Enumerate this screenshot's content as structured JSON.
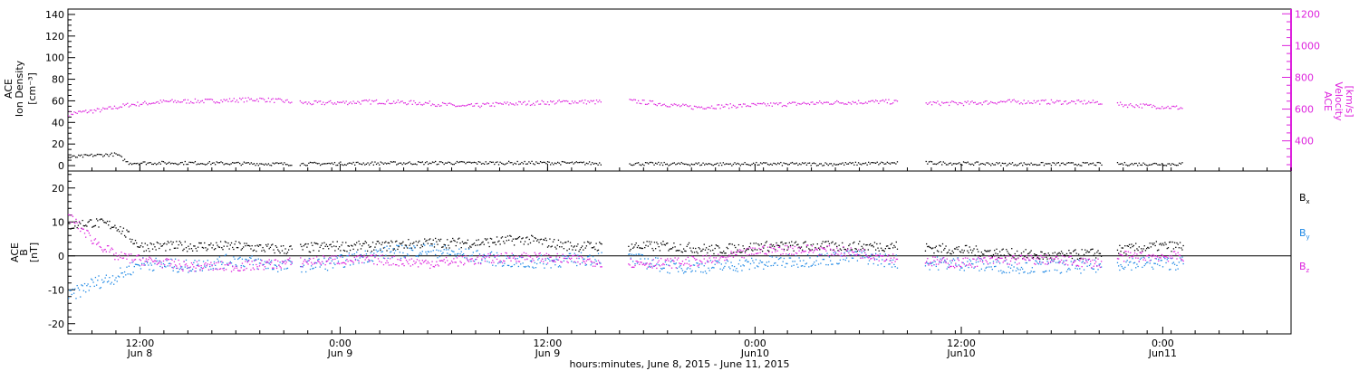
{
  "time_axis": {
    "caption": "hours:minutes, June  8, 2015 - June 11, 2015",
    "range_hours": [
      0,
      102
    ],
    "gap_hours": [
      [
        18.7,
        19.3
      ],
      [
        44.5,
        46.7
      ],
      [
        69.2,
        71.4
      ],
      [
        86.2,
        87.4
      ],
      [
        97.5,
        102
      ]
    ],
    "ticks": [
      {
        "hour": 6,
        "time": "12:00",
        "date": "Jun 8"
      },
      {
        "hour": 22.7,
        "time": "0:00",
        "date": "Jun 9"
      },
      {
        "hour": 40,
        "time": "12:00",
        "date": "Jun 9"
      },
      {
        "hour": 57.3,
        "time": "0:00",
        "date": "Jun10"
      },
      {
        "hour": 74.5,
        "time": "12:00",
        "date": "Jun10"
      },
      {
        "hour": 91.3,
        "time": "0:00",
        "date": "Jun11"
      }
    ]
  },
  "colors": {
    "black": "#000000",
    "magenta": "#dd22dd",
    "blue": "#1e88e5"
  },
  "chart_data": [
    {
      "type": "scatter",
      "left_axis": {
        "label_lines": [
          "ACE",
          "Ion Density",
          "[cm⁻³]"
        ],
        "range": [
          -5,
          145
        ],
        "ticks": [
          0,
          20,
          40,
          60,
          80,
          100,
          120,
          140
        ]
      },
      "right_axis": {
        "label_lines": [
          "ACE",
          "Velocity",
          "[km/s]"
        ],
        "range": [
          210,
          1230
        ],
        "ticks": [
          400,
          600,
          800,
          1000,
          1200
        ]
      },
      "series": [
        {
          "color_key": "magenta",
          "axis": "right",
          "points": [
            [
              0,
              575
            ],
            [
              3,
              600
            ],
            [
              5,
              630
            ],
            [
              8,
              650
            ],
            [
              12,
              655
            ],
            [
              16,
              665
            ],
            [
              20,
              640
            ],
            [
              26,
              650
            ],
            [
              30,
              640
            ],
            [
              33,
              620
            ],
            [
              36,
              635
            ],
            [
              40,
              645
            ],
            [
              42,
              650
            ],
            [
              44,
              648
            ],
            [
              46,
              660
            ],
            [
              49,
              640
            ],
            [
              52,
              615
            ],
            [
              56,
              625
            ],
            [
              60,
              635
            ],
            [
              64,
              645
            ],
            [
              68,
              650
            ],
            [
              72,
              640
            ],
            [
              75,
              640
            ],
            [
              78,
              650
            ],
            [
              82,
              648
            ],
            [
              86,
              645
            ],
            [
              88,
              630
            ],
            [
              91,
              620
            ],
            [
              93,
              610
            ]
          ]
        },
        {
          "color_key": "black",
          "axis": "left",
          "points": [
            [
              0,
              8
            ],
            [
              2,
              10
            ],
            [
              4,
              11
            ],
            [
              5,
              3
            ],
            [
              10,
              3
            ],
            [
              18,
              2
            ],
            [
              30,
              3
            ],
            [
              40,
              3
            ],
            [
              50,
              2
            ],
            [
              57,
              2
            ],
            [
              64,
              2
            ],
            [
              70,
              3
            ],
            [
              72,
              3
            ],
            [
              78,
              2
            ],
            [
              85,
              2
            ],
            [
              88,
              2
            ],
            [
              93,
              2
            ]
          ]
        }
      ]
    },
    {
      "type": "scatter",
      "y_axis": {
        "label_lines": [
          "ACE",
          "B",
          "[nT]"
        ],
        "range": [
          -23,
          25
        ],
        "ticks": [
          -20,
          -10,
          0,
          10,
          20
        ],
        "zero_line": true
      },
      "legend": [
        {
          "label": "B",
          "subscript": "x",
          "color_key": "black"
        },
        {
          "label": "B",
          "subscript": "y",
          "color_key": "blue"
        },
        {
          "label": "B",
          "subscript": "z",
          "color_key": "magenta"
        }
      ],
      "series": [
        {
          "name": "Bx",
          "color_key": "black",
          "points": [
            [
              0,
              9
            ],
            [
              2,
              10
            ],
            [
              4,
              9
            ],
            [
              6,
              3
            ],
            [
              10,
              3
            ],
            [
              14,
              3
            ],
            [
              18,
              2
            ],
            [
              22,
              3
            ],
            [
              26,
              3
            ],
            [
              30,
              4
            ],
            [
              34,
              4
            ],
            [
              38,
              5
            ],
            [
              42,
              3
            ],
            [
              46,
              3
            ],
            [
              50,
              3
            ],
            [
              54,
              2
            ],
            [
              58,
              3
            ],
            [
              62,
              3
            ],
            [
              66,
              3
            ],
            [
              70,
              3
            ],
            [
              74,
              2
            ],
            [
              78,
              1
            ],
            [
              82,
              0
            ],
            [
              86,
              1
            ],
            [
              88,
              2
            ],
            [
              91,
              3
            ],
            [
              93,
              3
            ]
          ]
        },
        {
          "name": "By",
          "color_key": "blue",
          "points": [
            [
              0,
              -12
            ],
            [
              2,
              -8
            ],
            [
              4,
              -6
            ],
            [
              6,
              -2
            ],
            [
              10,
              -3
            ],
            [
              14,
              -1
            ],
            [
              18,
              -3
            ],
            [
              22,
              -2
            ],
            [
              26,
              1
            ],
            [
              30,
              2
            ],
            [
              34,
              0
            ],
            [
              38,
              -2
            ],
            [
              42,
              -1
            ],
            [
              46,
              0
            ],
            [
              50,
              -3
            ],
            [
              54,
              -3
            ],
            [
              58,
              -2
            ],
            [
              62,
              -1
            ],
            [
              66,
              0
            ],
            [
              70,
              -2
            ],
            [
              74,
              -2
            ],
            [
              78,
              -3
            ],
            [
              82,
              -3
            ],
            [
              86,
              -3
            ],
            [
              88,
              -2
            ],
            [
              91,
              -2
            ],
            [
              93,
              -2
            ]
          ]
        },
        {
          "name": "Bz",
          "color_key": "magenta",
          "points": [
            [
              0,
              12
            ],
            [
              2,
              5
            ],
            [
              4,
              0
            ],
            [
              6,
              -1
            ],
            [
              10,
              -3
            ],
            [
              14,
              -3
            ],
            [
              18,
              -2
            ],
            [
              22,
              -1
            ],
            [
              26,
              -1
            ],
            [
              30,
              -2
            ],
            [
              34,
              -1
            ],
            [
              38,
              0
            ],
            [
              42,
              -1
            ],
            [
              46,
              -2
            ],
            [
              50,
              -2
            ],
            [
              54,
              -1
            ],
            [
              58,
              2
            ],
            [
              62,
              2
            ],
            [
              66,
              1
            ],
            [
              70,
              -1
            ],
            [
              74,
              -2
            ],
            [
              78,
              -1
            ],
            [
              82,
              -1
            ],
            [
              86,
              -2
            ],
            [
              88,
              0
            ],
            [
              91,
              0
            ],
            [
              93,
              0
            ]
          ]
        }
      ]
    }
  ]
}
